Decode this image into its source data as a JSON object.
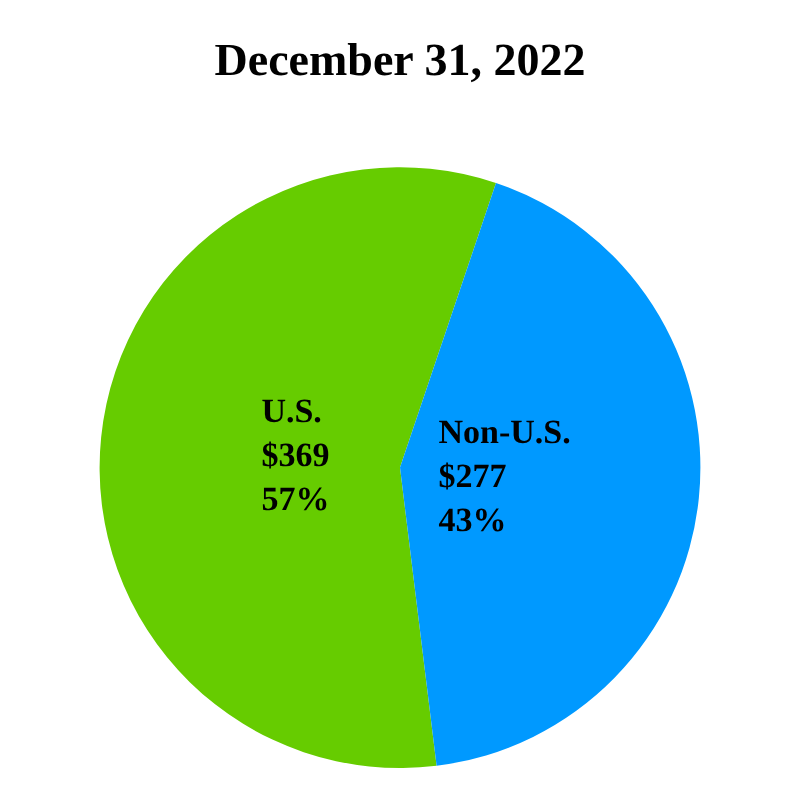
{
  "chart_data": {
    "type": "pie",
    "title": "December 31, 2022",
    "categories": [
      "U.S.",
      "Non-U.S."
    ],
    "values": [
      369,
      277
    ],
    "colors": [
      "#66cc00",
      "#0099ff"
    ],
    "value_labels": [
      "$369\n57%",
      "$277\n43%"
    ],
    "legend": false
  }
}
